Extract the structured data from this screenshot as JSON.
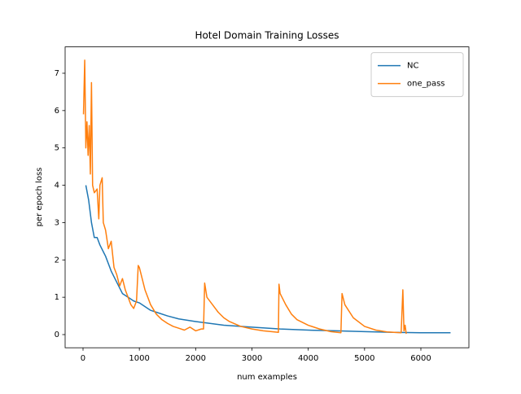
{
  "chart_data": {
    "type": "line",
    "title": "Hotel Domain Training Losses",
    "x_label": "num examples",
    "y_label": "per epoch loss",
    "xlim": [
      -318,
      6853
    ],
    "ylim": [
      -0.353,
      7.706
    ],
    "xticks": [
      0,
      1000,
      2000,
      3000,
      4000,
      5000,
      6000
    ],
    "yticks": [
      0,
      1,
      2,
      3,
      4,
      5,
      6,
      7
    ],
    "legend": "upper right",
    "grid": false,
    "series": [
      {
        "name": "NC",
        "color": "#1f77b4",
        "x": [
          50,
          100,
          150,
          200,
          250,
          300,
          400,
          500,
          600,
          700,
          800,
          900,
          1000,
          1100,
          1200,
          1300,
          1500,
          1700,
          2000,
          2500,
          3000,
          3500,
          4000,
          4500,
          5000,
          5500,
          6000,
          6527
        ],
        "values": [
          4.0,
          3.6,
          3.0,
          2.6,
          2.6,
          2.4,
          2.1,
          1.7,
          1.4,
          1.1,
          1.0,
          0.9,
          0.85,
          0.75,
          0.65,
          0.6,
          0.5,
          0.42,
          0.35,
          0.25,
          0.2,
          0.15,
          0.12,
          0.1,
          0.08,
          0.06,
          0.05,
          0.05
        ]
      },
      {
        "name": "one_pass",
        "color": "#ff7f0e",
        "x": [
          8,
          30,
          50,
          70,
          90,
          110,
          130,
          150,
          170,
          200,
          250,
          280,
          300,
          340,
          360,
          400,
          450,
          500,
          550,
          600,
          650,
          700,
          750,
          800,
          850,
          900,
          950,
          980,
          1000,
          1050,
          1100,
          1150,
          1200,
          1300,
          1400,
          1500,
          1600,
          1700,
          1800,
          1900,
          2000,
          2100,
          2140,
          2160,
          2200,
          2300,
          2400,
          2500,
          2600,
          2800,
          3000,
          3200,
          3400,
          3470,
          3480,
          3500,
          3600,
          3700,
          3800,
          4000,
          4200,
          4400,
          4580,
          4600,
          4650,
          4800,
          5000,
          5200,
          5400,
          5650,
          5680,
          5700,
          5720,
          5740
        ],
        "values": [
          5.9,
          7.35,
          5.0,
          5.7,
          4.8,
          5.6,
          4.3,
          6.75,
          4.0,
          3.8,
          3.9,
          3.1,
          4.0,
          4.2,
          3.0,
          2.8,
          2.3,
          2.5,
          1.8,
          1.6,
          1.3,
          1.5,
          1.2,
          1.0,
          0.8,
          0.7,
          0.9,
          1.85,
          1.8,
          1.5,
          1.2,
          1.0,
          0.8,
          0.55,
          0.4,
          0.3,
          0.22,
          0.17,
          0.12,
          0.2,
          0.1,
          0.15,
          0.15,
          1.38,
          1.0,
          0.8,
          0.6,
          0.45,
          0.35,
          0.22,
          0.15,
          0.1,
          0.07,
          0.06,
          1.35,
          1.1,
          0.8,
          0.55,
          0.4,
          0.25,
          0.15,
          0.08,
          0.05,
          1.1,
          0.8,
          0.45,
          0.22,
          0.12,
          0.07,
          0.05,
          1.2,
          0.1,
          0.25,
          0.02
        ]
      }
    ]
  }
}
